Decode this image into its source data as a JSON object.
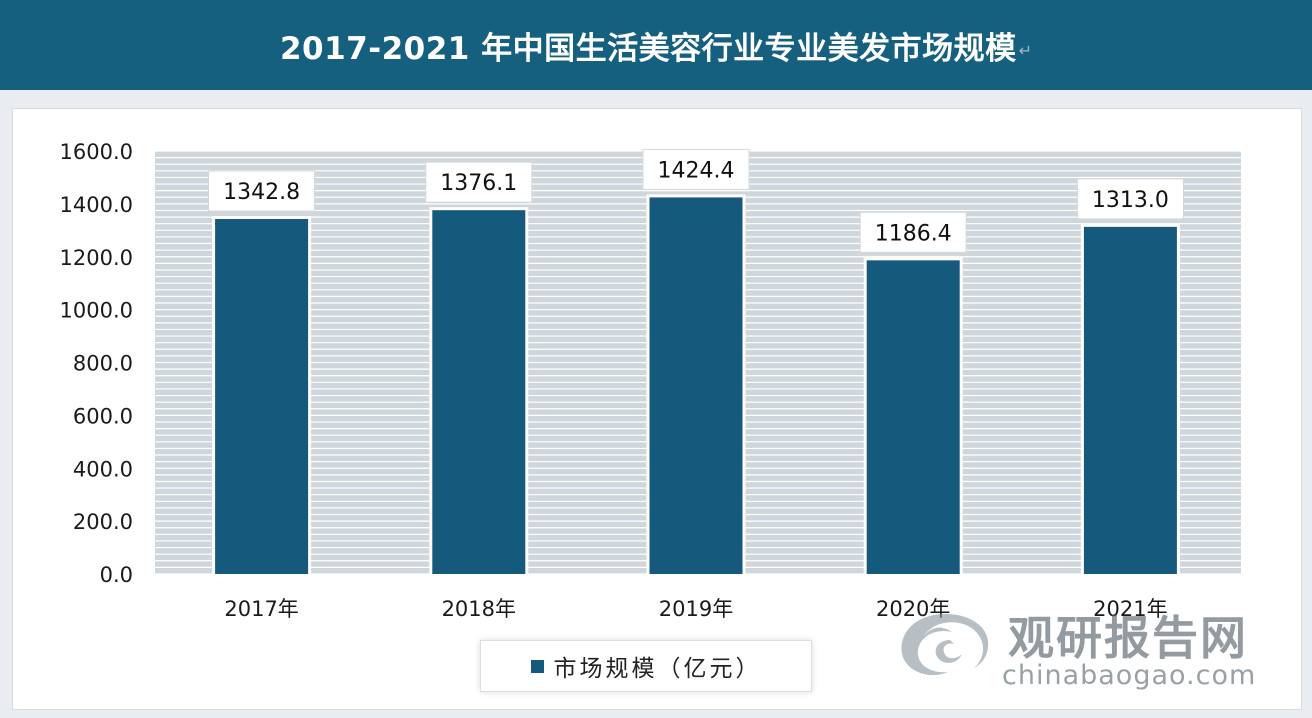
{
  "title": "2017-2021 年中国生活美容行业专业美发市场规模",
  "title_mark": "↵",
  "colors": {
    "title_bg": "#16607f",
    "bar": "#15597c",
    "plot_bg": "#cfd6dc",
    "grid": "#ffffff"
  },
  "chart_data": {
    "type": "bar",
    "categories": [
      "2017年",
      "2018年",
      "2019年",
      "2020年",
      "2021年"
    ],
    "series": [
      {
        "name": "市场规模（亿元）",
        "values": [
          1342.8,
          1376.1,
          1424.4,
          1186.4,
          1313.0
        ]
      }
    ],
    "data_labels": [
      "1342.8",
      "1376.1",
      "1424.4",
      "1186.4",
      "1313.0"
    ],
    "ylim": [
      0,
      1600
    ],
    "yticks": [
      0,
      200,
      400,
      600,
      800,
      1000,
      1200,
      1400,
      1600
    ],
    "ytick_labels": [
      "0.0",
      "200.0",
      "400.0",
      "600.0",
      "800.0",
      "1000.0",
      "1200.0",
      "1400.0",
      "1600.0"
    ],
    "grid": true,
    "legend_position": "bottom"
  },
  "legend_label": "市场规模（亿元）",
  "watermark": {
    "name": "观研报告网",
    "site": "chinabaogao.com",
    "logo_icon": "swirl-logo-icon"
  }
}
